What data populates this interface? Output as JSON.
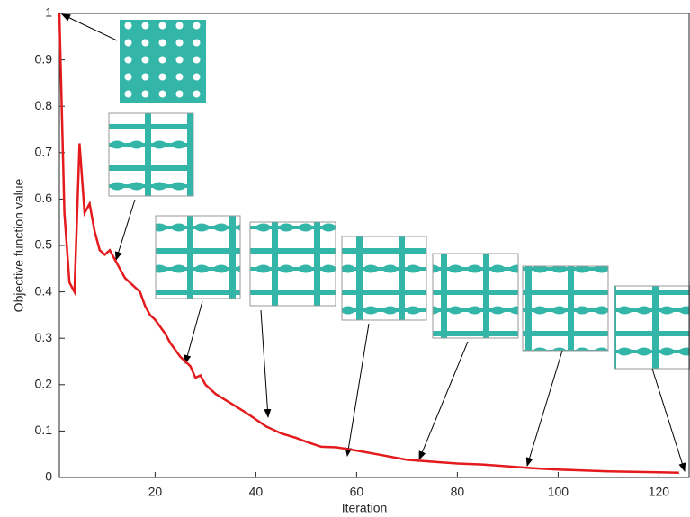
{
  "chart_data": {
    "type": "line",
    "x_label": "Iteration",
    "y_label": "Objective function value",
    "xlim": [
      1,
      126
    ],
    "ylim": [
      0,
      1
    ],
    "xticks": [
      20,
      40,
      60,
      80,
      100,
      120
    ],
    "yticks": [
      0,
      0.1,
      0.2,
      0.3,
      0.4,
      0.5,
      0.6,
      0.7,
      0.8,
      0.9,
      1
    ],
    "series": [
      {
        "color": "#e41a1c",
        "x": [
          1,
          2,
          3,
          4,
          5,
          6,
          7,
          8,
          9,
          10,
          11,
          12,
          13,
          14,
          15,
          17,
          18,
          19,
          20,
          22,
          23,
          25,
          27,
          28,
          29,
          30,
          32,
          35,
          38,
          40,
          42,
          45,
          48,
          50,
          53,
          56,
          60,
          65,
          70,
          75,
          80,
          85,
          90,
          95,
          100,
          105,
          110,
          115,
          120,
          124
        ],
        "values": [
          1,
          0.57,
          0.42,
          0.4,
          0.72,
          0.57,
          0.59,
          0.53,
          0.49,
          0.48,
          0.49,
          0.47,
          0.45,
          0.43,
          0.42,
          0.4,
          0.37,
          0.35,
          0.34,
          0.31,
          0.29,
          0.26,
          0.24,
          0.215,
          0.22,
          0.2,
          0.18,
          0.16,
          0.14,
          0.125,
          0.11,
          0.095,
          0.085,
          0.077,
          0.066,
          0.065,
          0.058,
          0.048,
          0.038,
          0.034,
          0.03,
          0.028,
          0.024,
          0.02,
          0.017,
          0.015,
          0.013,
          0.012,
          0.011,
          0.01
        ]
      }
    ]
  }
}
